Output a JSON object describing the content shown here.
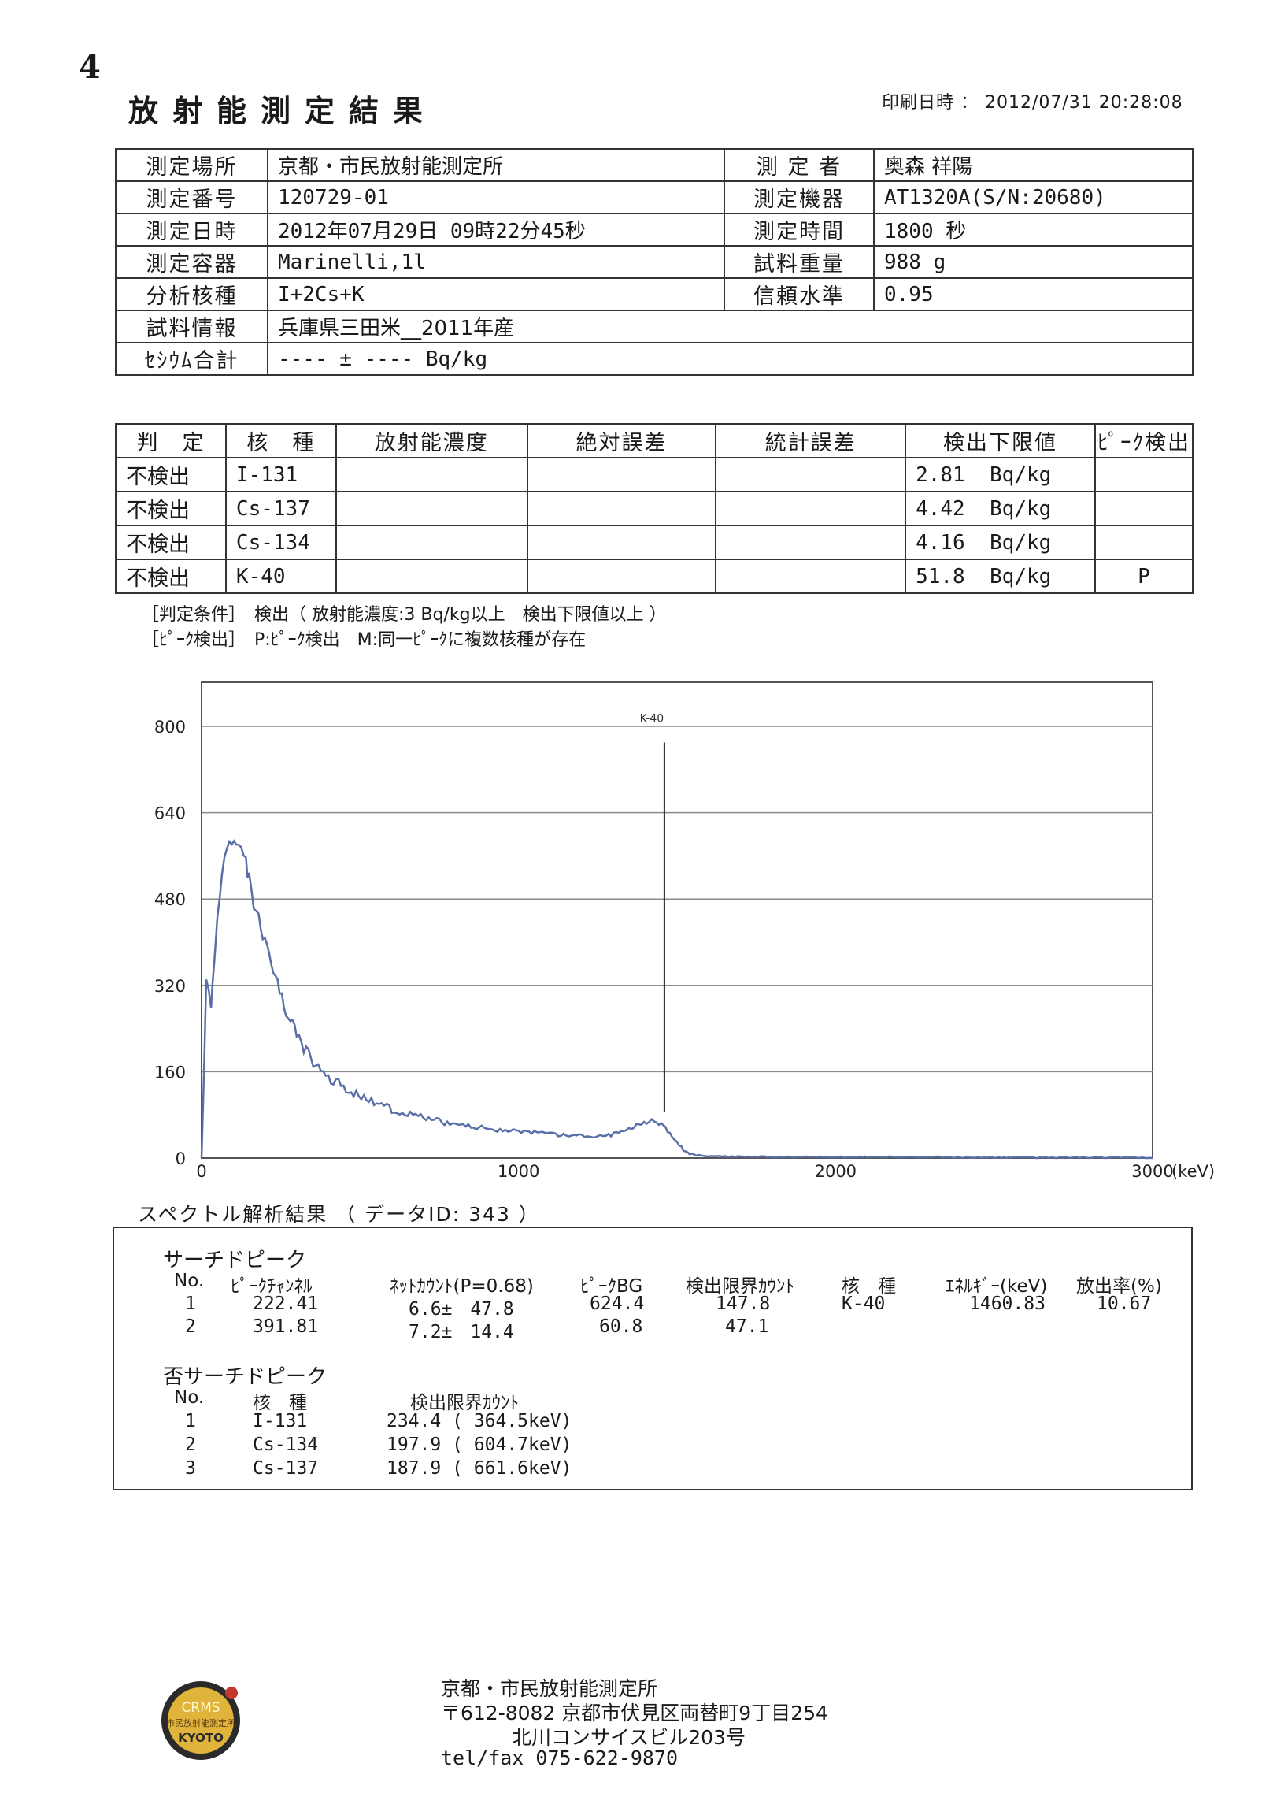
{
  "page_number": "4",
  "title": "放射能測定結果",
  "print_date": "印刷日時 ： 2012/07/31 20:28:08",
  "info": {
    "rows": [
      {
        "l1": "測定場所",
        "v1": "京都・市民放射能測定所",
        "l2": "測 定 者",
        "v2": "奥森 祥陽"
      },
      {
        "l1": "測定番号",
        "v1": "120729-01",
        "l2": "測定機器",
        "v2": "AT1320A(S/N:20680)"
      },
      {
        "l1": "測定日時",
        "v1": "2012年07月29日 09時22分45秒",
        "l2": "測定時間",
        "v2": "1800 秒"
      },
      {
        "l1": "測定容器",
        "v1": "Marinelli,1l",
        "l2": "試料重量",
        "v2": "988 g"
      },
      {
        "l1": "分析核種",
        "v1": "I+2Cs+K",
        "l2": "信頼水準",
        "v2": "0.95"
      }
    ],
    "sample_label": "試料情報",
    "sample_value": "兵庫県三田米__2011年産",
    "cesium_label": "ｾｼｳﾑ合計",
    "cesium_value": "---- ± ---- Bq/kg"
  },
  "results": {
    "headers": [
      "判　定",
      "核　種",
      "放射能濃度",
      "絶対誤差",
      "統計誤差",
      "検出下限値",
      "ﾋﾟｰｸ検出"
    ],
    "rows": [
      {
        "judge": "不検出",
        "nuclide": "I-131",
        "limit": "2.81",
        "unit": "Bq/kg",
        "peak": ""
      },
      {
        "judge": "不検出",
        "nuclide": "Cs-137",
        "limit": "4.42",
        "unit": "Bq/kg",
        "peak": ""
      },
      {
        "judge": "不検出",
        "nuclide": "Cs-134",
        "limit": "4.16",
        "unit": "Bq/kg",
        "peak": ""
      },
      {
        "judge": "不検出",
        "nuclide": "K-40",
        "limit": "51.8",
        "unit": "Bq/kg",
        "peak": "P"
      }
    ]
  },
  "conditions": {
    "line1": "［判定条件］　検出（ 放射能濃度:3 Bq/kg以上　検出下限値以上 ）",
    "line2": "［ﾋﾟｰｸ検出］　P:ﾋﾟｰｸ検出　M:同一ﾋﾟｰｸに複数核種が存在"
  },
  "chart_data": {
    "type": "line",
    "xlim": [
      0,
      3000
    ],
    "ylim": [
      0,
      800
    ],
    "x_ticks": [
      "0",
      "1000",
      "2000",
      "3000"
    ],
    "y_ticks": [
      "0",
      "160",
      "320",
      "480",
      "640",
      "800"
    ],
    "x_unit": "(keV)",
    "marker": {
      "label": "K-40",
      "x": 1460,
      "y_top": 770,
      "y_bottom": 85
    },
    "series": [
      {
        "x": [
          0,
          15,
          30,
          40,
          50,
          65,
          80,
          95,
          110,
          125,
          140,
          150,
          165,
          180,
          200,
          220,
          240,
          260,
          280,
          300,
          330,
          360,
          400,
          440,
          480,
          520,
          560,
          600,
          650,
          700,
          750,
          800,
          850,
          900,
          950,
          1000,
          1050,
          1100,
          1150,
          1200,
          1250,
          1300,
          1340,
          1380,
          1420,
          1450,
          1470,
          1500,
          1520,
          1540,
          1560,
          1600,
          1650,
          1700,
          1800,
          1900,
          2000,
          2100,
          2200,
          2300,
          2400,
          2500,
          2600,
          2700,
          2800,
          2900,
          3000
        ],
        "y": [
          0,
          320,
          290,
          360,
          450,
          530,
          570,
          590,
          585,
          575,
          545,
          520,
          470,
          440,
          400,
          360,
          320,
          280,
          250,
          230,
          200,
          170,
          150,
          135,
          120,
          110,
          100,
          90,
          82,
          75,
          68,
          62,
          58,
          55,
          52,
          50,
          47,
          44,
          42,
          41,
          40,
          44,
          52,
          65,
          70,
          62,
          50,
          30,
          15,
          8,
          5,
          4,
          3,
          3,
          2,
          2,
          2,
          2,
          2,
          2,
          1,
          1,
          1,
          1,
          1,
          1,
          0
        ]
      }
    ]
  },
  "spectrum": {
    "title": "スペクトル解析結果 （ データID: 343 ）",
    "search_title": "サーチドピーク",
    "search_headers": [
      "No.",
      "ﾋﾟｰｸﾁｬﾝﾈﾙ",
      "ﾈｯﾄｶｳﾝﾄ(P=0.68)",
      "ﾋﾟｰｸBG",
      "検出限界ｶｳﾝﾄ",
      "核　種",
      "ｴﾈﾙｷﾞｰ(keV)",
      "放出率(%)"
    ],
    "search_rows": [
      {
        "no": "1",
        "ch": "222.41",
        "net": "6.6±　47.8",
        "bg": "624.4",
        "lim": "147.8",
        "nuc": "K-40",
        "en": "1460.83",
        "rate": "10.67"
      },
      {
        "no": "2",
        "ch": "391.81",
        "net": "7.2±　14.4",
        "bg": "60.8",
        "lim": "47.1",
        "nuc": "",
        "en": "",
        "rate": ""
      }
    ],
    "nonsearch_title": "否サーチドピーク",
    "nonsearch_headers": [
      "No.",
      "核　種",
      "検出限界ｶｳﾝﾄ"
    ],
    "nonsearch_rows": [
      {
        "no": "1",
        "nuc": "I-131",
        "lim": "234.4 ( 364.5keV)"
      },
      {
        "no": "2",
        "nuc": "Cs-134",
        "lim": "197.9 ( 604.7keV)"
      },
      {
        "no": "3",
        "nuc": "Cs-137",
        "lim": "187.9 ( 661.6keV)"
      }
    ]
  },
  "footer": {
    "org": "京都・市民放射能測定所",
    "address": "〒612-8082 京都市伏見区両替町9丁目254",
    "building": "北川コンサイスビル203号",
    "tel": "tel/fax 075-622-9870"
  },
  "logo": {
    "line1": "CRMS",
    "line2": "市民放射能測定所",
    "line3": "KYOTO"
  }
}
